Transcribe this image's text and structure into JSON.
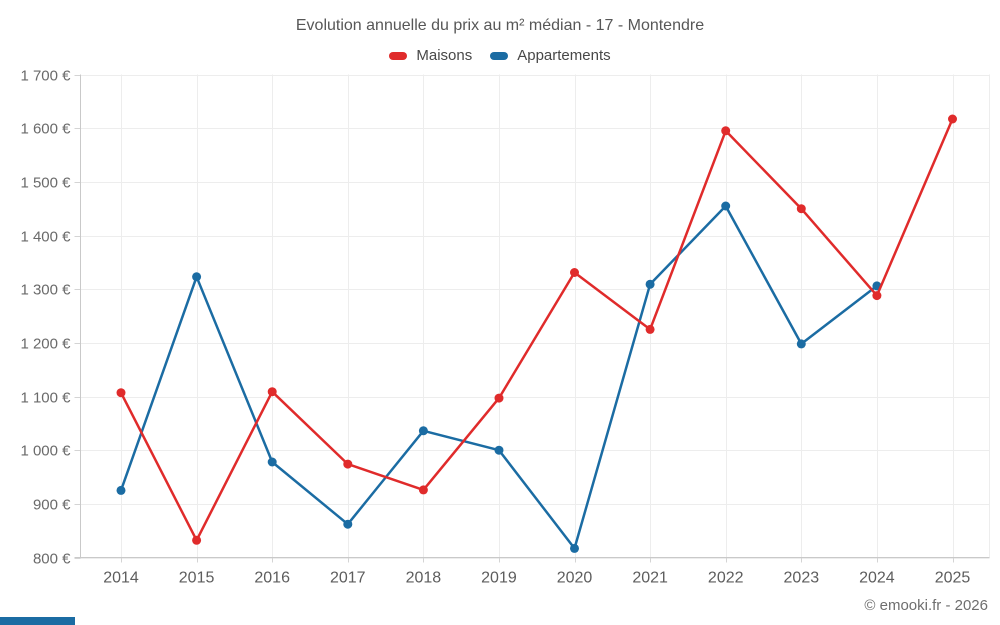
{
  "header": {
    "title": "Evolution annuelle du prix au m² médian - 17 - Montendre"
  },
  "legend": {
    "items": [
      {
        "label": "Maisons",
        "color": "#e02b2b"
      },
      {
        "label": "Appartements",
        "color": "#1b6ca3"
      }
    ]
  },
  "footer": {
    "credit": "© emooki.fr - 2026"
  },
  "accent_bar": {
    "color": "#1b6ca3"
  },
  "colors": {
    "grid": "#ededed",
    "axis": "#c9c9c9",
    "tick": "#d4d4d4",
    "ytick_text": "#6a6a6a",
    "xtick_text": "#5d5d5d"
  },
  "chart_data": {
    "type": "line",
    "title": "Evolution annuelle du prix au m² médian - 17 - Montendre",
    "categories": [
      "2014",
      "2015",
      "2016",
      "2017",
      "2018",
      "2019",
      "2020",
      "2021",
      "2022",
      "2023",
      "2024",
      "2025"
    ],
    "series": [
      {
        "name": "Maisons",
        "color": "#e02b2b",
        "values": [
          1107,
          832,
          1109,
          974,
          926,
          1097,
          1331,
          1225,
          1595,
          1450,
          1288,
          1617
        ]
      },
      {
        "name": "Appartements",
        "color": "#1b6ca3",
        "values": [
          925,
          1323,
          978,
          862,
          1036,
          1000,
          817,
          1309,
          1455,
          1198,
          1306,
          null
        ]
      }
    ],
    "xlabel": "",
    "ylabel": "",
    "ylim": [
      800,
      1700
    ],
    "ytick_step": 100,
    "ytick_labels": [
      "1 700 €",
      "1 600 €",
      "1 500 €",
      "1 400 €",
      "1 300 €",
      "1 200 €",
      "1 100 €",
      "1 000 €",
      "900 €",
      "800 €"
    ],
    "currency_suffix": "€",
    "grid": true,
    "legend_position": "top"
  }
}
